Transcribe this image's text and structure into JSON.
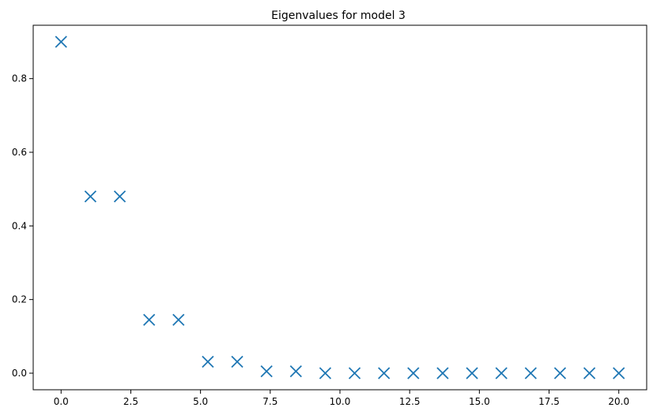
{
  "chart_data": {
    "type": "scatter",
    "title": "Eigenvalues for model 3",
    "xlabel": "",
    "ylabel": "",
    "xlim": [
      -1.0,
      21.0
    ],
    "ylim": [
      -0.045,
      0.945
    ],
    "x_ticks": [
      {
        "value": 0.0,
        "label": "0.0"
      },
      {
        "value": 2.5,
        "label": "2.5"
      },
      {
        "value": 5.0,
        "label": "5.0"
      },
      {
        "value": 7.5,
        "label": "7.5"
      },
      {
        "value": 10.0,
        "label": "10.0"
      },
      {
        "value": 12.5,
        "label": "12.5"
      },
      {
        "value": 15.0,
        "label": "15.0"
      },
      {
        "value": 17.5,
        "label": "17.5"
      },
      {
        "value": 20.0,
        "label": "20.0"
      }
    ],
    "y_ticks": [
      {
        "value": 0.0,
        "label": "0.0"
      },
      {
        "value": 0.2,
        "label": "0.2"
      },
      {
        "value": 0.4,
        "label": "0.4"
      },
      {
        "value": 0.6,
        "label": "0.6"
      },
      {
        "value": 0.8,
        "label": "0.8"
      }
    ],
    "grid": false,
    "marker": "x",
    "color": "#1f77b4",
    "points": [
      {
        "x": 0.0,
        "y": 0.9
      },
      {
        "x": 1.0526,
        "y": 0.48
      },
      {
        "x": 2.1053,
        "y": 0.48
      },
      {
        "x": 3.1579,
        "y": 0.145
      },
      {
        "x": 4.2105,
        "y": 0.145
      },
      {
        "x": 5.2632,
        "y": 0.031
      },
      {
        "x": 6.3158,
        "y": 0.031
      },
      {
        "x": 7.3684,
        "y": 0.005
      },
      {
        "x": 8.4211,
        "y": 0.005
      },
      {
        "x": 9.4737,
        "y": 0.0
      },
      {
        "x": 10.5263,
        "y": 0.0
      },
      {
        "x": 11.5789,
        "y": 0.0
      },
      {
        "x": 12.6316,
        "y": 0.0
      },
      {
        "x": 13.6842,
        "y": 0.0
      },
      {
        "x": 14.7368,
        "y": 0.0
      },
      {
        "x": 15.7895,
        "y": 0.0
      },
      {
        "x": 16.8421,
        "y": 0.0
      },
      {
        "x": 17.8947,
        "y": 0.0
      },
      {
        "x": 18.9474,
        "y": 0.0
      },
      {
        "x": 20.0,
        "y": 0.0
      }
    ]
  }
}
